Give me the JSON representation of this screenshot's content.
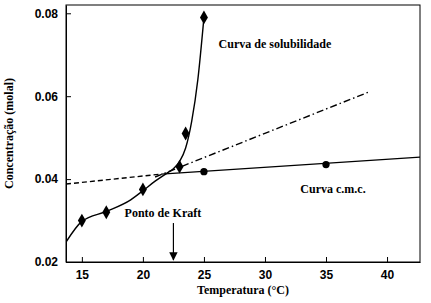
{
  "chart_data": {
    "type": "line",
    "x_label": "Temperatura (°C)",
    "y_label": "Concentração (molal)",
    "xlim": [
      13.7,
      42.7
    ],
    "ylim": [
      0.02,
      0.082
    ],
    "xticks": [
      15,
      20,
      25,
      30,
      35,
      40
    ],
    "yticks": [
      0.02,
      0.04,
      0.06,
      0.08
    ],
    "grid": false,
    "series": [
      {
        "type": "line",
        "color": "#000000",
        "line_style": "solid",
        "marker": "none",
        "x": [
          13.7,
          15,
          17,
          19,
          20,
          21,
          22,
          22.5,
          23,
          23.5,
          24,
          24.5,
          25
        ],
        "values": [
          0.0248,
          0.0298,
          0.0322,
          0.035,
          0.0372,
          0.0395,
          0.0415,
          0.0425,
          0.0442,
          0.0475,
          0.054,
          0.064,
          0.079
        ]
      },
      {
        "type": "scatter",
        "color": "#000000",
        "marker": "diamond",
        "x": [
          15,
          17,
          20,
          23,
          23.5,
          25
        ],
        "values": [
          0.03,
          0.032,
          0.0375,
          0.043,
          0.051,
          0.079
        ]
      },
      {
        "type": "line",
        "color": "#000000",
        "line_style": "solid",
        "marker": "none",
        "x": [
          21.5,
          42.7
        ],
        "values": [
          0.0412,
          0.0453
        ]
      },
      {
        "type": "line",
        "color": "#000000",
        "line_style": "dashed",
        "marker": "none",
        "x": [
          13.7,
          21.5
        ],
        "values": [
          0.0388,
          0.0412
        ]
      },
      {
        "type": "scatter",
        "color": "#000000",
        "marker": "circle",
        "x": [
          25,
          35
        ],
        "values": [
          0.0418,
          0.0435
        ]
      },
      {
        "type": "line",
        "color": "#000000",
        "line_style": "dashdot",
        "marker": "none",
        "x": [
          21,
          38.5
        ],
        "values": [
          0.0405,
          0.061
        ]
      }
    ],
    "annotations": [
      {
        "text": "Curva de solubilidade",
        "x": 26.2,
        "y": 0.0716
      },
      {
        "text": "Curva c.m.c.",
        "x": 32.9,
        "y": 0.0366
      },
      {
        "text": "Ponto de Kraft",
        "x": 18.5,
        "y": 0.0309,
        "arrow": {
          "x": 22.5,
          "y": [
            0.0294,
            0.0205
          ]
        }
      }
    ]
  }
}
